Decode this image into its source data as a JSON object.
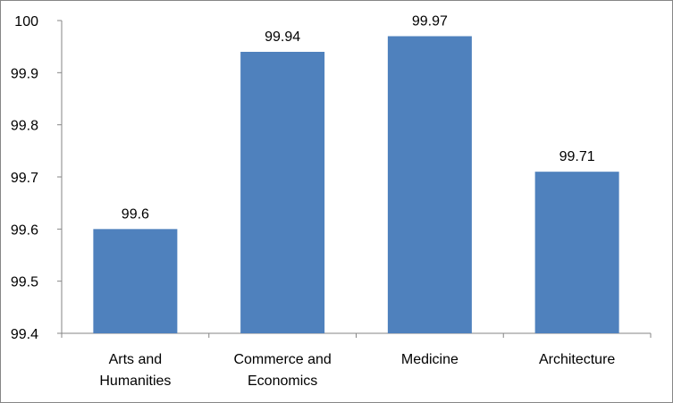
{
  "chart_data": {
    "type": "bar",
    "categories": [
      [
        "Arts and",
        "Humanities"
      ],
      [
        "Commerce and",
        "Economics"
      ],
      [
        "Medicine"
      ],
      [
        "Architecture"
      ]
    ],
    "values": [
      99.6,
      99.94,
      99.97,
      99.71
    ],
    "data_labels": [
      "99.6",
      "99.94",
      "99.97",
      "99.71"
    ],
    "yticks": [
      "99.4",
      "99.5",
      "99.6",
      "99.7",
      "99.8",
      "99.9",
      "100"
    ],
    "ylim": [
      99.4,
      100
    ],
    "title": "",
    "xlabel": "",
    "ylabel": "",
    "grid": false,
    "legend": "none",
    "bar_color": "#4F81BD",
    "axis_color": "#868686"
  }
}
